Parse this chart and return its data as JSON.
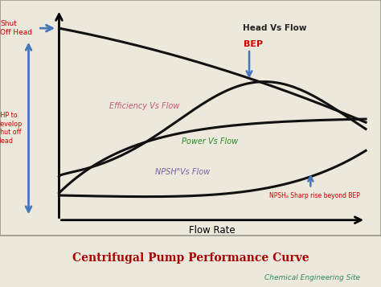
{
  "title": "Centrifugal Pump Performance Curve",
  "subtitle": "Chemical Engineering Site",
  "xlabel": "Flow Rate",
  "background_color": "#ede8dc",
  "chart_bg": "#ede8dc",
  "border_color": "#999988",
  "title_color": "#aa0000",
  "subtitle_color": "#2e8b57",
  "curve_color": "#111111",
  "curve_lw": 2.2,
  "head_label": "Head Vs Flow",
  "efficiency_label": "Efficiency Vs Flow",
  "power_label": "Power Vs Flow",
  "npshr_label": "NPSHᴿVs Flow",
  "bep_label": "BEP",
  "shut_off_head_label": "Shut\nOff Head",
  "bhp_label": "BHP to\ndevelop\nShut off\nHead",
  "npsha_label": "NPSHₐ Sharp rise beyond BEP",
  "label_color_head": "#222222",
  "label_color_efficiency": "#c05878",
  "label_color_power": "#228b22",
  "label_color_npshr": "#7b5ea7",
  "label_color_bep": "#cc0000",
  "label_color_shut": "#cc0000",
  "label_color_bhp": "#cc0000",
  "label_color_npsha": "#cc0000",
  "arrow_color": "#4477bb"
}
